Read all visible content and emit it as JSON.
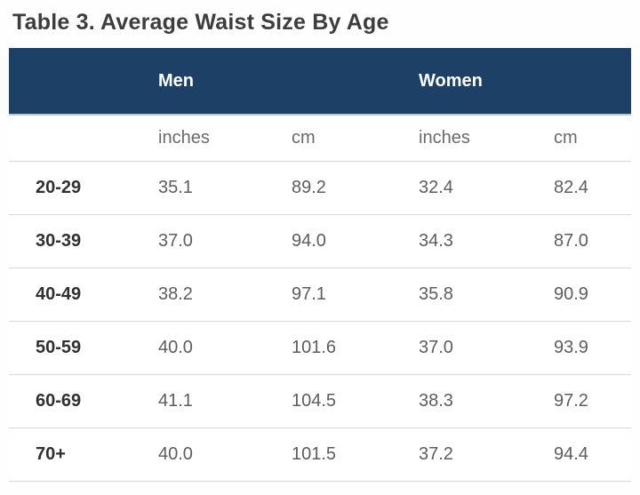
{
  "page": {
    "title": "Table 3. Average Waist Size By Age"
  },
  "table": {
    "groups": [
      {
        "label": "Men"
      },
      {
        "label": "Women"
      }
    ],
    "unit_headers": [
      "inches",
      "cm",
      "inches",
      "cm"
    ],
    "rows": [
      {
        "age": "20-29",
        "values": [
          "35.1",
          "89.2",
          "32.4",
          "82.4"
        ]
      },
      {
        "age": "30-39",
        "values": [
          "37.0",
          "94.0",
          "34.3",
          "87.0"
        ]
      },
      {
        "age": "40-49",
        "values": [
          "38.2",
          "97.1",
          "35.8",
          "90.9"
        ]
      },
      {
        "age": "50-59",
        "values": [
          "40.0",
          "101.6",
          "37.0",
          "93.9"
        ]
      },
      {
        "age": "60-69",
        "values": [
          "41.1",
          "104.5",
          "38.3",
          "97.2"
        ]
      },
      {
        "age": "70+",
        "values": [
          "40.0",
          "101.5",
          "37.2",
          "94.4"
        ]
      }
    ],
    "colors": {
      "header_bg": "#1d4166",
      "header_text": "#ffffff",
      "row_border": "#d7d7d7",
      "title_text": "#3d3d3d",
      "value_text": "#5d5d5d"
    }
  }
}
